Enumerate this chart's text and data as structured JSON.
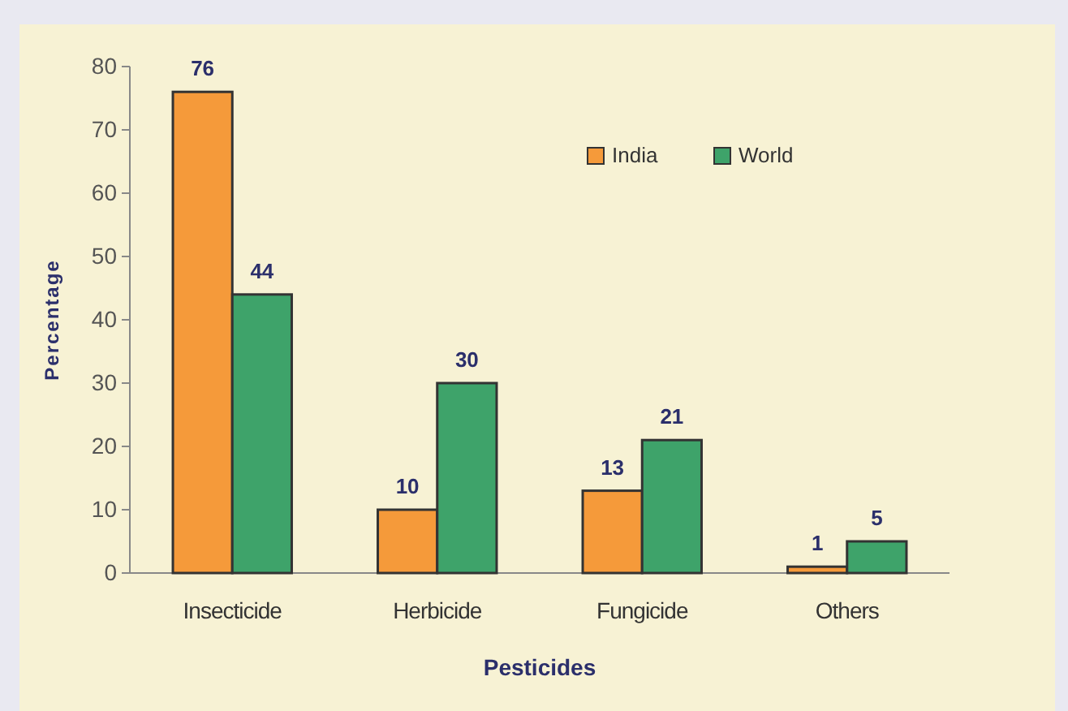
{
  "chart_data": {
    "type": "bar",
    "xlabel": "Pesticides",
    "ylabel": "Percentage",
    "categories": [
      "Insecticide",
      "Herbicide",
      "Fungicide",
      "Others"
    ],
    "series": [
      {
        "name": "India",
        "color": "#f59a3a",
        "values": [
          76,
          10,
          13,
          1
        ]
      },
      {
        "name": "World",
        "color": "#3ea36a",
        "values": [
          44,
          30,
          21,
          5
        ]
      }
    ],
    "ylim": [
      0,
      80
    ],
    "yticks": [
      0,
      10,
      20,
      30,
      40,
      50,
      60,
      70,
      80
    ],
    "data_labels": true,
    "legend": "top right",
    "grid": false
  }
}
